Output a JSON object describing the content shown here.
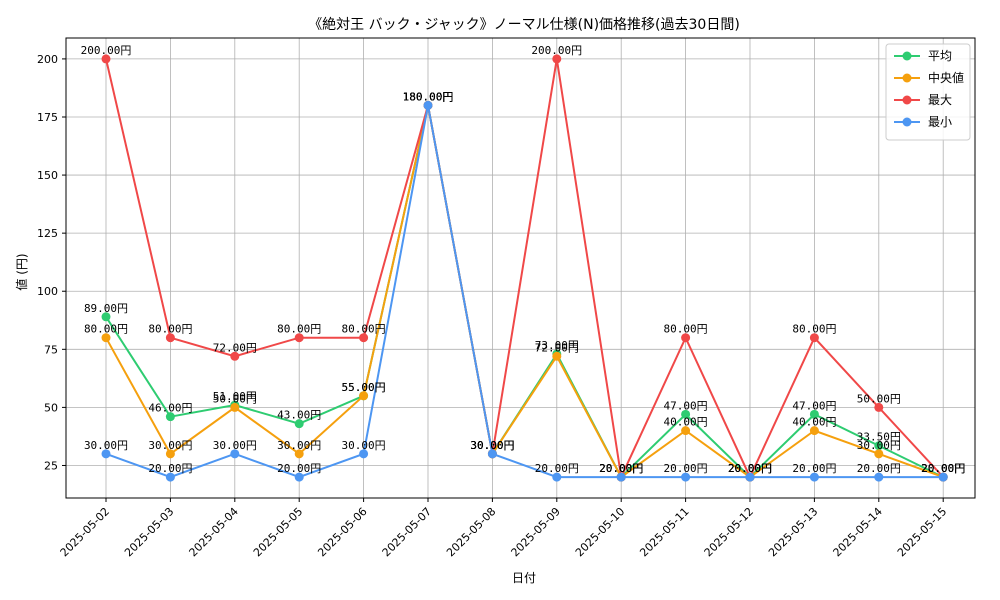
{
  "chart_data": {
    "type": "line",
    "title": "《絶対王 バック・ジャック》ノーマル仕様(N)価格推移(過去30日間)",
    "xlabel": "日付",
    "ylabel": "値 (円)",
    "ylim": [
      11,
      209
    ],
    "yticks": [
      25,
      50,
      75,
      100,
      125,
      150,
      175,
      200
    ],
    "grid": true,
    "legend_position": "top-right",
    "label_suffix": "円",
    "categories": [
      "2025-05-02",
      "2025-05-03",
      "2025-05-04",
      "2025-05-05",
      "2025-05-06",
      "2025-05-07",
      "2025-05-08",
      "2025-05-09",
      "2025-05-10",
      "2025-05-11",
      "2025-05-12",
      "2025-05-13",
      "2025-05-14",
      "2025-05-15"
    ],
    "series": [
      {
        "name": "平均",
        "color": "#2ecc71",
        "values": [
          89,
          46,
          51,
          43,
          55,
          180,
          30,
          73,
          20,
          47,
          20,
          47,
          33.5,
          20
        ]
      },
      {
        "name": "中央値",
        "color": "#f5a00e",
        "values": [
          80,
          30,
          50,
          30,
          55,
          180,
          30,
          72,
          20,
          40,
          20,
          40,
          30,
          20
        ]
      },
      {
        "name": "最大",
        "color": "#f04848",
        "values": [
          200,
          80,
          72,
          80,
          80,
          180,
          30,
          200,
          20,
          80,
          20,
          80,
          50,
          20
        ]
      },
      {
        "name": "最小",
        "color": "#4d96f2",
        "values": [
          30,
          20,
          30,
          20,
          30,
          180,
          30,
          20,
          20,
          20,
          20,
          20,
          20,
          20
        ]
      }
    ]
  }
}
